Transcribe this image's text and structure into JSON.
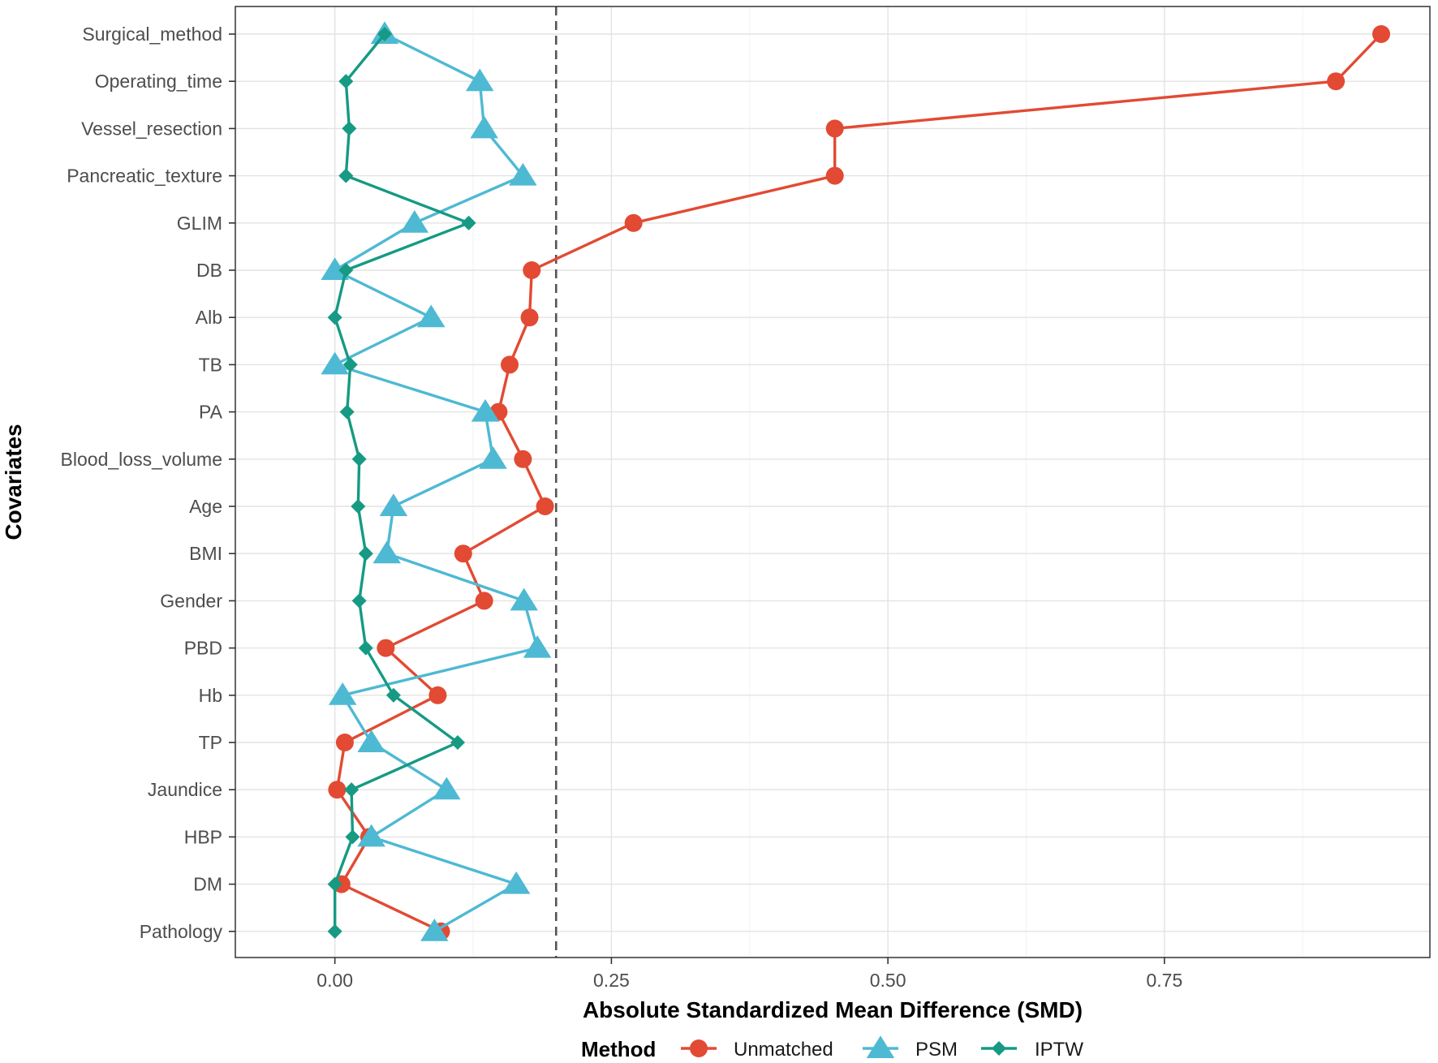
{
  "chart_data": {
    "type": "line",
    "title": "",
    "xlabel": "Absolute Standardized Mean Difference (SMD)",
    "ylabel": "Covariates",
    "xlim": [
      -0.09,
      0.99
    ],
    "x_ticks": [
      0.0,
      0.25,
      0.5,
      0.75
    ],
    "x_tick_labels": [
      "0.00",
      "0.25",
      "0.50",
      "0.75"
    ],
    "threshold": 0.2,
    "grid": true,
    "legend": {
      "title": "Method",
      "position": "bottom"
    },
    "categories": [
      "Surgical_method",
      "Operating_time",
      "Vessel_resection",
      "Pancreatic_texture",
      "GLIM",
      "DB",
      "Alb",
      "TB",
      "PA",
      "Blood_loss_volume",
      "Age",
      "BMI",
      "Gender",
      "PBD",
      "Hb",
      "TP",
      "Jaundice",
      "HBP",
      "DM",
      "Pathology"
    ],
    "series": [
      {
        "name": "Unmatched",
        "color": "#E24A33",
        "marker": "circle",
        "values": [
          0.946,
          0.905,
          0.452,
          0.452,
          0.27,
          0.178,
          0.176,
          0.158,
          0.148,
          0.17,
          0.19,
          0.116,
          0.135,
          0.046,
          0.093,
          0.009,
          0.002,
          0.031,
          0.006,
          0.096
        ]
      },
      {
        "name": "PSM",
        "color": "#4EB9D3",
        "marker": "triangle",
        "values": [
          0.045,
          0.131,
          0.135,
          0.17,
          0.072,
          0.0,
          0.087,
          0.0,
          0.136,
          0.143,
          0.053,
          0.047,
          0.171,
          0.183,
          0.007,
          0.033,
          0.101,
          0.033,
          0.164,
          0.09
        ]
      },
      {
        "name": "IPTW",
        "color": "#169A83",
        "marker": "diamond",
        "values": [
          0.045,
          0.01,
          0.013,
          0.01,
          0.121,
          0.01,
          0.0,
          0.014,
          0.011,
          0.022,
          0.021,
          0.028,
          0.022,
          0.028,
          0.053,
          0.111,
          0.015,
          0.016,
          0.0,
          0.0
        ]
      }
    ]
  }
}
